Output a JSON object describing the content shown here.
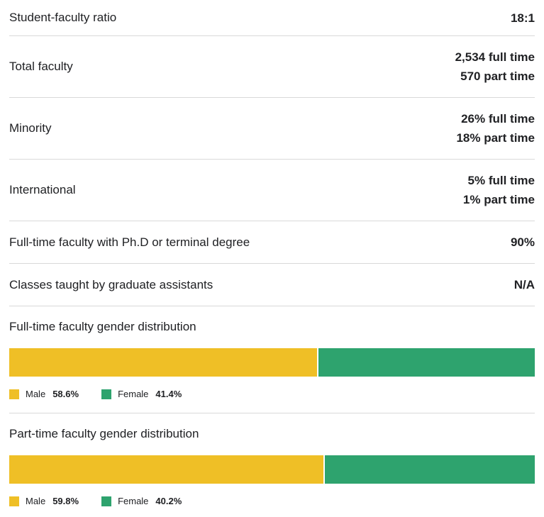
{
  "colors": {
    "male": "#efbf26",
    "female": "#2ea36e"
  },
  "stats": [
    {
      "label": "Student-faculty ratio",
      "values": [
        "18:1"
      ]
    },
    {
      "label": "Total faculty",
      "values": [
        "2,534 full time",
        "570 part time"
      ]
    },
    {
      "label": "Minority",
      "values": [
        "26% full time",
        "18% part time"
      ]
    },
    {
      "label": "International",
      "values": [
        "5% full time",
        "1% part time"
      ]
    },
    {
      "label": "Full-time faculty with Ph.D or terminal degree",
      "values": [
        "90%"
      ]
    },
    {
      "label": "Classes taught by graduate assistants",
      "values": [
        "N/A"
      ]
    }
  ],
  "gender": [
    {
      "title": "Full-time faculty gender distribution",
      "male_label": "Male",
      "male_pct": "58.6%",
      "male_value": 58.6,
      "female_label": "Female",
      "female_pct": "41.4%",
      "female_value": 41.4
    },
    {
      "title": "Part-time faculty gender distribution",
      "male_label": "Male",
      "male_pct": "59.8%",
      "male_value": 59.8,
      "female_label": "Female",
      "female_pct": "40.2%",
      "female_value": 40.2
    }
  ]
}
